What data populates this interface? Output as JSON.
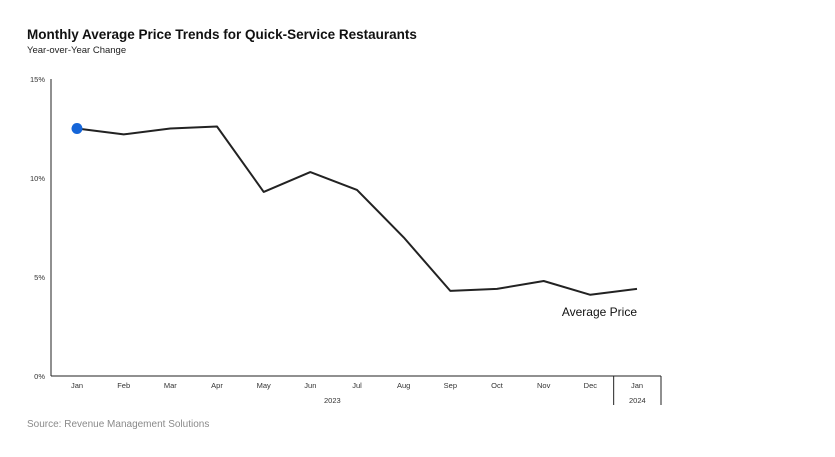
{
  "title": "Monthly Average Price Trends for Quick-Service Restaurants",
  "subtitle": "Year-over-Year Change",
  "source": "Source: Revenue Management Solutions",
  "colors": {
    "line": "#222222",
    "marker": "#1565d8",
    "axis": "#222222",
    "source_text": "#8a8a8a"
  },
  "chart_data": {
    "type": "line",
    "title": "Monthly Average Price Trends for Quick-Service Restaurants",
    "subtitle": "Year-over-Year Change",
    "xlabel": "",
    "ylabel": "",
    "categories": [
      "Jan",
      "Feb",
      "Mar",
      "Apr",
      "May",
      "Jun",
      "Jul",
      "Aug",
      "Sep",
      "Oct",
      "Nov",
      "Dec",
      "Jan"
    ],
    "year_groups": [
      {
        "label": "2023",
        "start": 0,
        "end": 11
      },
      {
        "label": "2024",
        "start": 12,
        "end": 12
      }
    ],
    "y_ticks": [
      0,
      5,
      10,
      15
    ],
    "y_tick_labels": [
      "0%",
      "5%",
      "10%",
      "15%"
    ],
    "ylim": [
      0,
      15
    ],
    "grid": false,
    "series": [
      {
        "name": "Average Price",
        "values": [
          12.5,
          12.2,
          12.5,
          12.6,
          9.3,
          10.3,
          9.4,
          7.0,
          4.3,
          4.4,
          4.8,
          4.1,
          4.4
        ]
      }
    ],
    "highlight_point_index": 0
  }
}
